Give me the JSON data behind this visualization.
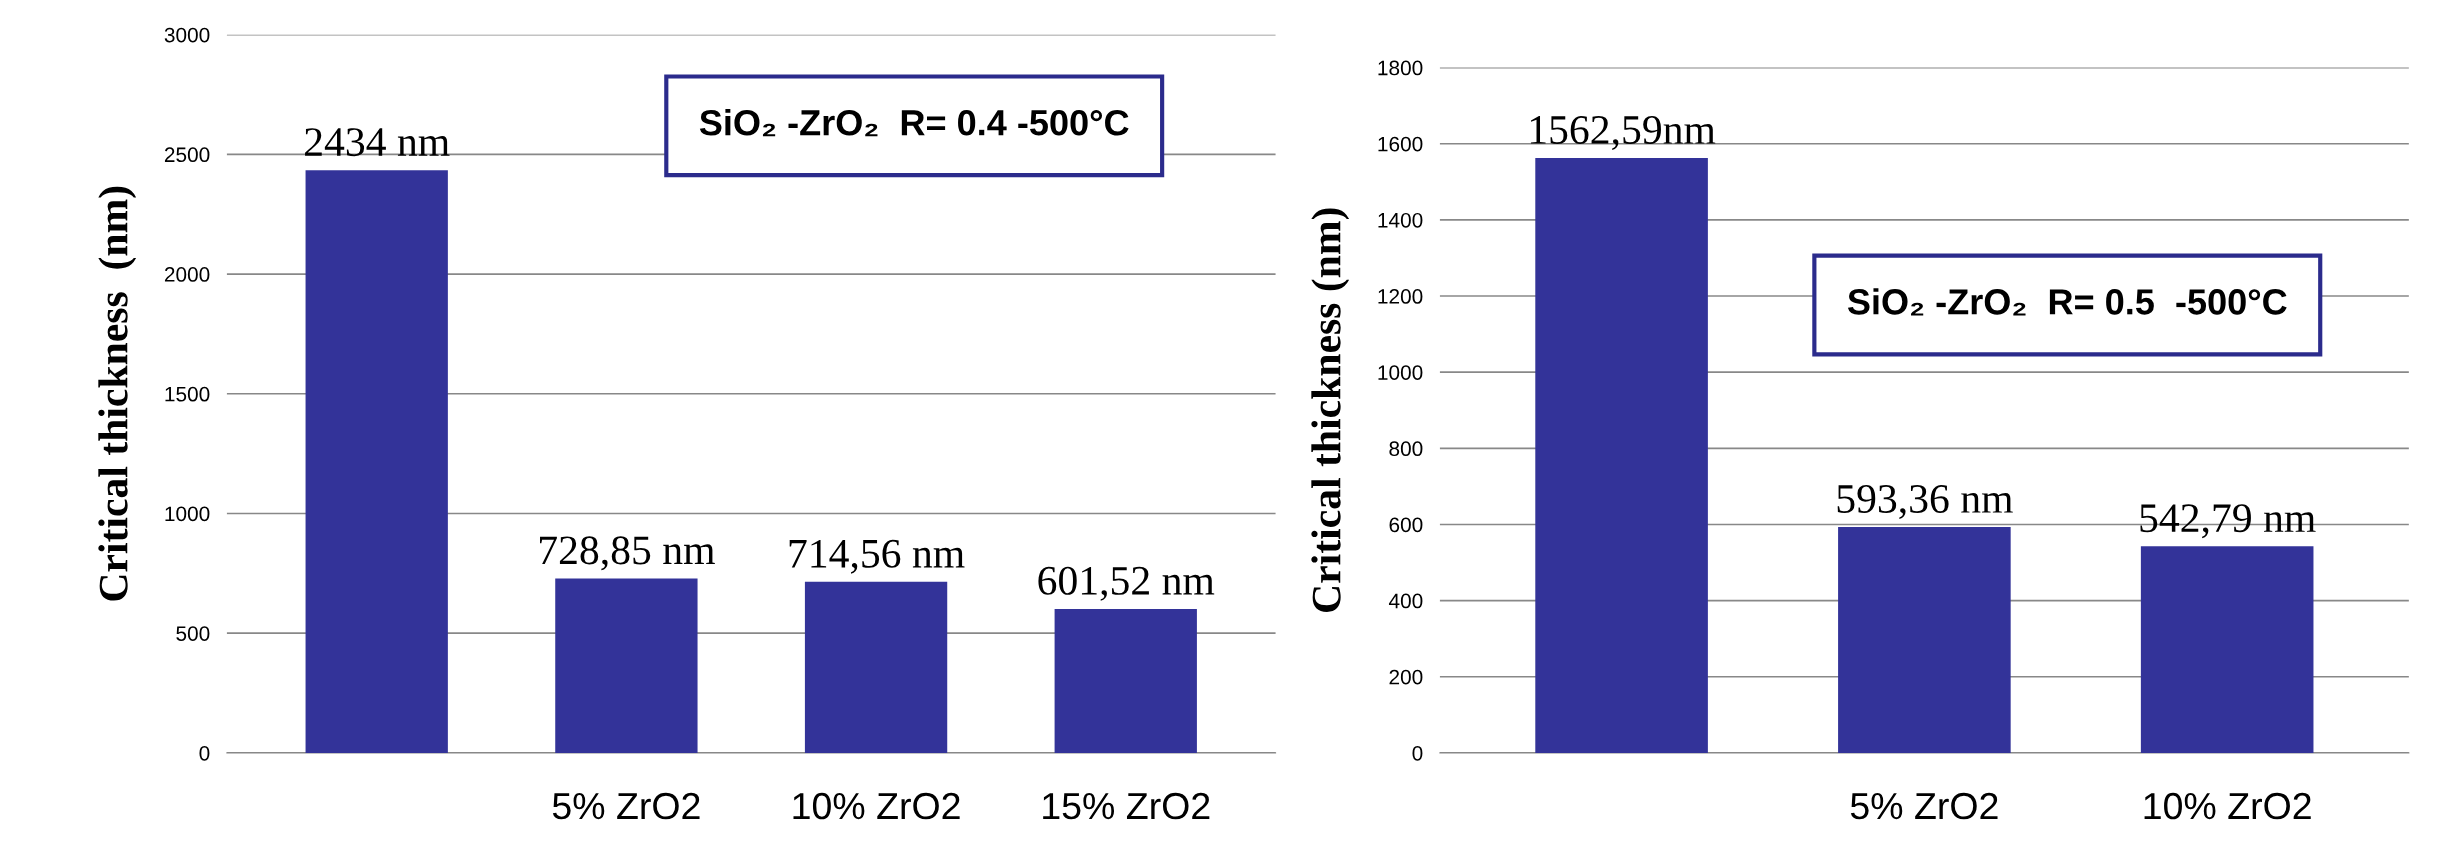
{
  "chart_data": [
    {
      "type": "bar",
      "ylabel": "Critical thickness  (nm)",
      "categories": [
        null,
        "5% ZrO2",
        "10% ZrO2",
        "15% ZrO2"
      ],
      "values": [
        2434,
        728.85,
        714.56,
        601.52
      ],
      "value_labels": [
        "2434 nm",
        "728,85 nm",
        "714,56 nm",
        "601,52 nm"
      ],
      "color": "#333399",
      "ylim": [
        0,
        3000
      ],
      "yticks": [
        0,
        500,
        1000,
        1500,
        2000,
        2500,
        3000
      ],
      "grid": "y",
      "annotations": [
        "SiO₂ -ZrO₂  R= 0.4 -500°C"
      ]
    },
    {
      "type": "bar",
      "ylabel": "Critical thickness (nm)",
      "categories": [
        null,
        "5% ZrO2",
        "10% ZrO2"
      ],
      "values": [
        1562.59,
        593.36,
        542.79
      ],
      "value_labels": [
        "1562,59nm",
        "593,36 nm",
        "542,79 nm"
      ],
      "color": "#333399",
      "ylim": [
        0,
        1800
      ],
      "yticks": [
        0,
        200,
        400,
        600,
        800,
        1000,
        1200,
        1400,
        1600,
        1800
      ],
      "grid": "y",
      "annotations": [
        "SiO₂ -ZrO₂  R= 0.5  -500°C"
      ]
    }
  ]
}
